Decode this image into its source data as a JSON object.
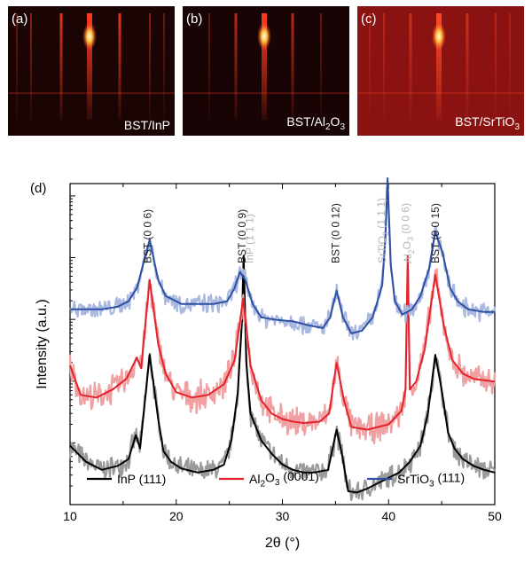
{
  "panels": [
    {
      "label": "(a)",
      "caption": "BST/InP",
      "caption_parts": [
        "BST/InP"
      ],
      "background": "#1a0504",
      "streak_color": "#ff3a1e"
    },
    {
      "label": "(b)",
      "caption": "BST/Al2O3",
      "caption_parts": [
        "BST/Al",
        "2",
        "O",
        "3"
      ],
      "background": "#180404",
      "streak_color": "#ff3a1e"
    },
    {
      "label": "(c)",
      "caption": "BST/SrTiO3",
      "caption_parts": [
        "BST/SrTiO",
        "3"
      ],
      "background": "#8a1210",
      "streak_color": "#ff4a26"
    }
  ],
  "chart_data": {
    "type": "line",
    "panel_label": "(d)",
    "xlabel": "2θ (°)",
    "ylabel": "Intensity (a.u.)",
    "xlim": [
      10,
      50
    ],
    "ylim_log_relative": [
      0,
      12.0
    ],
    "y_scale": "log",
    "xticks": [
      10,
      20,
      30,
      40,
      50
    ],
    "legend": {
      "placement": "bottom",
      "entries": [
        {
          "name": "InP (111)",
          "parts": [
            "InP (111)"
          ],
          "color": "#000000"
        },
        {
          "name": "Al2O3 (0001)",
          "parts": [
            "Al",
            "2",
            "O",
            "3",
            " (0001)"
          ],
          "color": "#e3222b"
        },
        {
          "name": "SrTiO3 (111)",
          "parts": [
            "SrTiO",
            "3",
            " (111)"
          ],
          "color": "#2f4fa3"
        }
      ]
    },
    "series": [
      {
        "name": "InP (111)",
        "color": "#000000",
        "raw_color": "#9a9a9a",
        "noise": 0.35,
        "points": [
          [
            10,
            2.2
          ],
          [
            11.5,
            1.6
          ],
          [
            13,
            1.3
          ],
          [
            14.5,
            1.45
          ],
          [
            15.5,
            1.7
          ],
          [
            16.2,
            2.6
          ],
          [
            16.6,
            2.1
          ],
          [
            17.5,
            5.6
          ],
          [
            18.3,
            3.2
          ],
          [
            18.8,
            2.0
          ],
          [
            19.5,
            1.6
          ],
          [
            20.5,
            1.35
          ],
          [
            22,
            1.2
          ],
          [
            23.5,
            1.3
          ],
          [
            24.5,
            1.5
          ],
          [
            25.2,
            2.4
          ],
          [
            25.8,
            4.2
          ],
          [
            26.2,
            6.9
          ],
          [
            26.35,
            9.3
          ],
          [
            26.6,
            5.3
          ],
          [
            27.0,
            3.4
          ],
          [
            28,
            2.4
          ],
          [
            29,
            1.9
          ],
          [
            30,
            1.5
          ],
          [
            31,
            1.3
          ],
          [
            32,
            1.2
          ],
          [
            33,
            1.2
          ],
          [
            34.3,
            1.3
          ],
          [
            35.1,
            2.8
          ],
          [
            35.6,
            1.9
          ],
          [
            36.2,
            0.5
          ],
          [
            37,
            0.45
          ],
          [
            38,
            0.6
          ],
          [
            39,
            0.8
          ],
          [
            40,
            1.0
          ],
          [
            41,
            1.2
          ],
          [
            42,
            1.6
          ],
          [
            43,
            2.2
          ],
          [
            43.7,
            3.4
          ],
          [
            44.4,
            5.6
          ],
          [
            45.0,
            4.3
          ],
          [
            45.6,
            2.7
          ],
          [
            46.2,
            2.1
          ],
          [
            47,
            1.7
          ],
          [
            48,
            1.45
          ],
          [
            49,
            1.3
          ],
          [
            50,
            1.2
          ]
        ]
      },
      {
        "name": "Al2O3 (0001)",
        "color": "#e3222b",
        "raw_color": "#f0a0a0",
        "noise": 0.45,
        "points": [
          [
            10,
            5.2
          ],
          [
            11,
            4.1
          ],
          [
            12.5,
            4.0
          ],
          [
            14,
            4.3
          ],
          [
            15.3,
            4.7
          ],
          [
            16.3,
            5.5
          ],
          [
            16.7,
            5.1
          ],
          [
            17.5,
            8.4
          ],
          [
            18.3,
            6.0
          ],
          [
            19,
            4.9
          ],
          [
            20,
            4.2
          ],
          [
            21.5,
            4.0
          ],
          [
            23,
            4.1
          ],
          [
            24.5,
            4.5
          ],
          [
            25.5,
            5.4
          ],
          [
            26.3,
            7.7
          ],
          [
            27.0,
            5.2
          ],
          [
            28,
            3.9
          ],
          [
            29,
            3.4
          ],
          [
            30,
            3.2
          ],
          [
            31,
            3.1
          ],
          [
            32,
            3.05
          ],
          [
            33.5,
            3.1
          ],
          [
            34.4,
            3.4
          ],
          [
            35.1,
            5.3
          ],
          [
            35.8,
            3.9
          ],
          [
            36.5,
            2.9
          ],
          [
            38,
            2.8
          ],
          [
            40,
            3.0
          ],
          [
            41.2,
            3.5
          ],
          [
            41.6,
            4.3
          ],
          [
            41.8,
            9.3
          ],
          [
            42.0,
            4.3
          ],
          [
            42.6,
            4.6
          ],
          [
            43.4,
            5.8
          ],
          [
            44.4,
            8.6
          ],
          [
            45.2,
            6.7
          ],
          [
            46,
            5.4
          ],
          [
            47,
            4.9
          ],
          [
            48,
            4.7
          ],
          [
            50,
            4.6
          ]
        ]
      },
      {
        "name": "SrTiO3 (111)",
        "color": "#2f4fa3",
        "raw_color": "#a8b8e0",
        "noise": 0.3,
        "points": [
          [
            10,
            7.3
          ],
          [
            11.5,
            7.3
          ],
          [
            13,
            7.3
          ],
          [
            14.5,
            7.4
          ],
          [
            15.5,
            7.6
          ],
          [
            16.3,
            8.1
          ],
          [
            17.5,
            9.9
          ],
          [
            18.3,
            8.4
          ],
          [
            19,
            7.8
          ],
          [
            20.5,
            7.5
          ],
          [
            22,
            7.5
          ],
          [
            23.5,
            7.5
          ],
          [
            24.8,
            7.6
          ],
          [
            25.5,
            8.1
          ],
          [
            26.0,
            8.7
          ],
          [
            26.5,
            8.4
          ],
          [
            27.2,
            7.5
          ],
          [
            28,
            7.0
          ],
          [
            29.5,
            6.9
          ],
          [
            31,
            6.85
          ],
          [
            32.5,
            6.7
          ],
          [
            33.8,
            6.6
          ],
          [
            34.5,
            7.0
          ],
          [
            35.1,
            8.0
          ],
          [
            35.7,
            7.0
          ],
          [
            36.5,
            6.4
          ],
          [
            37.5,
            6.5
          ],
          [
            38.5,
            7.0
          ],
          [
            39.4,
            8.2
          ],
          [
            39.7,
            10.0
          ],
          [
            39.9,
            12.2
          ],
          [
            40.2,
            9.0
          ],
          [
            40.6,
            7.6
          ],
          [
            41.3,
            7.1
          ],
          [
            42.2,
            7.3
          ],
          [
            43,
            7.8
          ],
          [
            43.8,
            8.8
          ],
          [
            44.4,
            10.2
          ],
          [
            45.1,
            9.4
          ],
          [
            45.8,
            8.1
          ],
          [
            46.5,
            7.6
          ],
          [
            47.5,
            7.3
          ],
          [
            49,
            7.2
          ],
          [
            50,
            7.2
          ]
        ]
      }
    ],
    "peak_labels": [
      {
        "x": 17.3,
        "parts": [
          "BST (0 0 6)"
        ],
        "color": "#222222"
      },
      {
        "x": 26.2,
        "parts": [
          "BST (0 0 9)"
        ],
        "color": "#222222"
      },
      {
        "x": 26.9,
        "parts": [
          "InP (1 1 1)"
        ],
        "color": "#b4b4b4"
      },
      {
        "x": 35.0,
        "parts": [
          "BST (0 0 12)"
        ],
        "color": "#222222"
      },
      {
        "x": 39.4,
        "parts": [
          "SrTiO",
          "3",
          " (1 1 1)"
        ],
        "color": "#b4b4b4"
      },
      {
        "x": 41.8,
        "parts": [
          "Al",
          "2",
          "O",
          "3",
          " (0 0 6)"
        ],
        "color": "#b4b4b4"
      },
      {
        "x": 44.4,
        "parts": [
          "BST (0 0 15)"
        ],
        "color": "#222222"
      }
    ]
  }
}
